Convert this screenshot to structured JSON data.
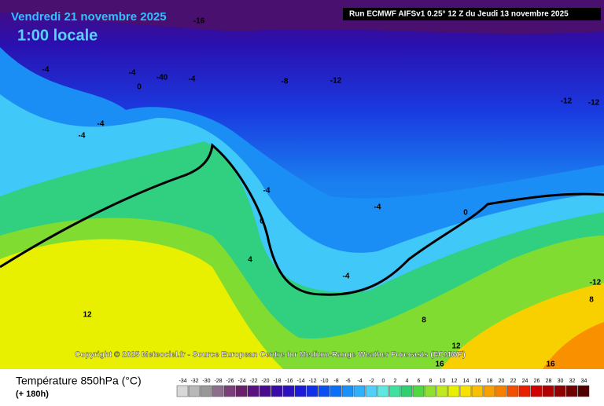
{
  "header": {
    "date": "Vendredi 21 novembre 2025",
    "time": "1:00 locale",
    "run": "Run ECMWF AIFSv1 0.25° 12 Z du Jeudi 13 novembre 2025"
  },
  "copyright": "Copyright © 2025 Meteociel.fr - Source European Centre for Medium-Range Weather Forecasts (ECMWF)",
  "map": {
    "contour_labels": [
      -16,
      -12,
      -12,
      -12,
      -8,
      -4,
      -4,
      -40,
      -4,
      0,
      -4,
      -4,
      -4,
      -4,
      0,
      4,
      -4,
      0,
      12,
      8,
      8,
      -12,
      12,
      16,
      16
    ]
  },
  "legend": {
    "title": "Température 850hPa (°C)",
    "lead": "(+ 180h)",
    "labels": [
      -34,
      -32,
      -30,
      -28,
      -26,
      -24,
      -22,
      -20,
      -18,
      -16,
      -14,
      -12,
      -10,
      -8,
      -6,
      -4,
      -2,
      0,
      2,
      4,
      6,
      8,
      10,
      12,
      14,
      16,
      18,
      20,
      22,
      24,
      26,
      28,
      30,
      32,
      34
    ],
    "colors": [
      "#d8d8d8",
      "#b8b8b8",
      "#989898",
      "#8c6d8c",
      "#7a3f7a",
      "#6a1f6a",
      "#5a1080",
      "#4a0a90",
      "#3a0aa8",
      "#2a10c0",
      "#1a1ad8",
      "#1030e8",
      "#0a50f0",
      "#0a70f8",
      "#1a90fa",
      "#30b0fa",
      "#50d0fa",
      "#60e8e0",
      "#40e0a0",
      "#30d070",
      "#50d840",
      "#90e030",
      "#c0ea20",
      "#e8f000",
      "#f8e000",
      "#f8c000",
      "#f8a000",
      "#f88000",
      "#f05000",
      "#e82000",
      "#d00000",
      "#b00000",
      "#900000",
      "#700000",
      "#500000"
    ]
  }
}
